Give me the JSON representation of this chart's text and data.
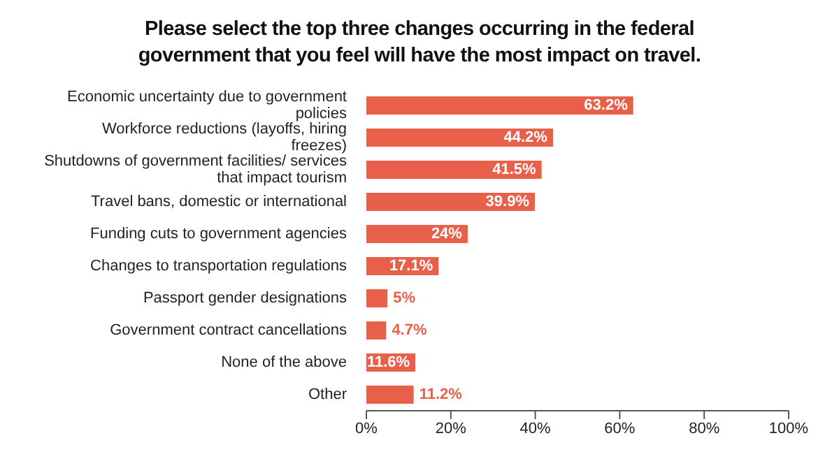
{
  "chart_data": {
    "type": "bar",
    "orientation": "horizontal",
    "title": "Please select the top three changes occurring in the federal government that you feel will have the most impact on travel.",
    "categories": [
      "Economic uncertainty due to government policies",
      "Workforce reductions (layoffs, hiring freezes)",
      "Shutdowns of government facilities/ services that impact tourism",
      "Travel bans, domestic or international",
      "Funding cuts to government agencies",
      "Changes to transportation regulations",
      "Passport gender designations",
      "Government contract cancellations",
      "None of the above",
      "Other"
    ],
    "values": [
      63.2,
      44.2,
      41.5,
      39.9,
      24,
      17.1,
      5,
      4.7,
      11.6,
      11.2
    ],
    "value_labels": [
      "63.2%",
      "44.2%",
      "41.5%",
      "39.9%",
      "24%",
      "17.1%",
      "5%",
      "4.7%",
      "11.6%",
      "11.2%"
    ],
    "color": "#e8604a",
    "xlim": [
      0,
      100
    ],
    "xticks": [
      {
        "value": 0,
        "label": "0%"
      },
      {
        "value": 20,
        "label": "20%"
      },
      {
        "value": 40,
        "label": "40%"
      },
      {
        "value": 60,
        "label": "60%"
      },
      {
        "value": 80,
        "label": "80%"
      },
      {
        "value": 100,
        "label": "100%"
      }
    ],
    "grid": false,
    "legend": false
  }
}
